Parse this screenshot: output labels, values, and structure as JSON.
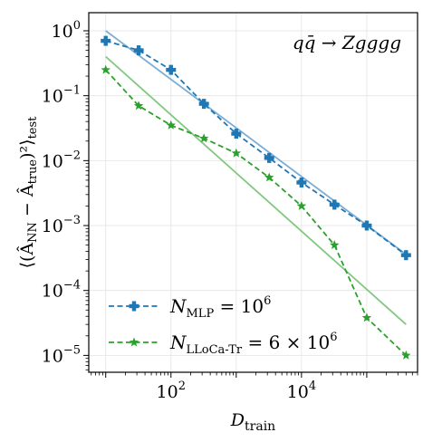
{
  "chart_data": {
    "type": "line",
    "xscale": "log",
    "yscale": "log",
    "xlim": [
      5.5,
      600000
    ],
    "ylim": [
      5.5e-06,
      1.9
    ],
    "xticks": [
      {
        "value": 100,
        "label_base": "10",
        "label_exp": "2"
      },
      {
        "value": 10000,
        "label_base": "10",
        "label_exp": "4"
      }
    ],
    "yticks": [
      {
        "value": 1,
        "label_base": "10",
        "label_exp": "0"
      },
      {
        "value": 0.1,
        "label_base": "10",
        "label_exp": "−1"
      },
      {
        "value": 0.01,
        "label_base": "10",
        "label_exp": "−2"
      },
      {
        "value": 0.001,
        "label_base": "10",
        "label_exp": "−3"
      },
      {
        "value": 0.0001,
        "label_base": "10",
        "label_exp": "−4"
      },
      {
        "value": 1e-05,
        "label_base": "10",
        "label_exp": "−5"
      }
    ],
    "xlabel": {
      "main": "D",
      "sub": "train"
    },
    "ylabel": {
      "text": "⟨(Â",
      "sub1": "NN",
      "mid": " − Â",
      "sub2": "true",
      "tail": ")²⟩",
      "sub3": "test"
    },
    "annotation": "qq̄ → Zgggg",
    "grid": true,
    "legend_position": "lower-left",
    "series": [
      {
        "name": "N_MLP = 10^6",
        "legend": {
          "main": "N",
          "sub": "MLP",
          "rest": " = 10",
          "sup": "6"
        },
        "color": "#1f77b4",
        "marker": "plus",
        "linestyle": "dashed",
        "x": [
          10,
          32,
          100,
          320,
          1000,
          3200,
          10000,
          32000,
          100000,
          400000
        ],
        "y": [
          0.7,
          0.5,
          0.25,
          0.075,
          0.026,
          0.011,
          0.0046,
          0.0021,
          0.001,
          0.00035
        ]
      },
      {
        "name": "N_LLoCa-Tr = 6 × 10^6",
        "legend": {
          "main": "N",
          "sub": "LLoCa-Tr",
          "rest": " = 6 × 10",
          "sup": "6"
        },
        "color": "#2ca02c",
        "marker": "star",
        "linestyle": "dashed",
        "x": [
          10,
          32,
          100,
          320,
          1000,
          3200,
          10000,
          32000,
          100000,
          400000
        ],
        "y": [
          0.25,
          0.07,
          0.035,
          0.022,
          0.013,
          0.0055,
          0.002,
          0.0005,
          3.8e-05,
          1e-05
        ]
      }
    ],
    "fit_lines": [
      {
        "color": "#7baed6",
        "x": [
          10,
          400000
        ],
        "y": [
          1.0,
          0.00036
        ]
      },
      {
        "color": "#80c880",
        "x": [
          10,
          400000
        ],
        "y": [
          0.4,
          3e-05
        ]
      }
    ]
  }
}
